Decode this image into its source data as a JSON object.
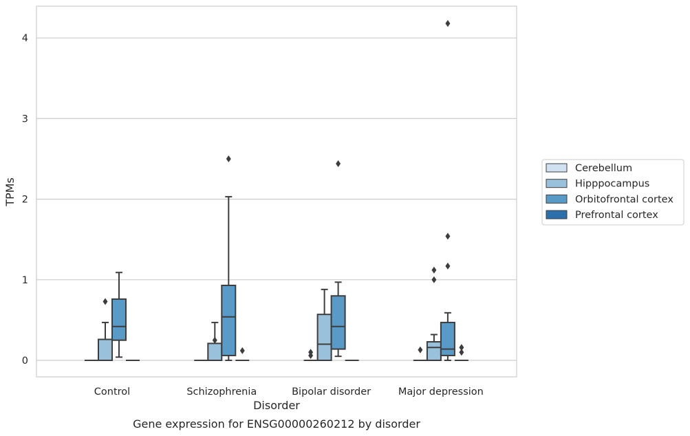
{
  "caption": "Gene expression for ENSG00000260212 by disorder",
  "chart_data": {
    "type": "box",
    "xlabel": "Disorder",
    "ylabel": "TPMs",
    "ylim": [
      -0.2,
      4.4
    ],
    "yticks": [
      0,
      1,
      2,
      3,
      4
    ],
    "grid": "y",
    "legend_position": "right",
    "categories": [
      "Control",
      "Schizophrenia",
      "Bipolar disorder",
      "Major depression"
    ],
    "series": [
      {
        "name": "Cerebellum",
        "color": "#d0e2f2",
        "boxes": [
          {
            "q1": 0,
            "median": 0,
            "q3": 0,
            "whisker_low": 0,
            "whisker_high": 0,
            "outliers": []
          },
          {
            "q1": 0,
            "median": 0,
            "q3": 0,
            "whisker_low": 0,
            "whisker_high": 0,
            "outliers": []
          },
          {
            "q1": 0,
            "median": 0,
            "q3": 0,
            "whisker_low": 0,
            "whisker_high": 0,
            "outliers": [
              0.06,
              0.1
            ]
          },
          {
            "q1": 0,
            "median": 0,
            "q3": 0,
            "whisker_low": 0,
            "whisker_high": 0,
            "outliers": [
              0.13
            ]
          }
        ]
      },
      {
        "name": "Hipppocampus",
        "color": "#9ac1dc",
        "boxes": [
          {
            "q1": 0,
            "median": 0,
            "q3": 0.26,
            "whisker_low": 0,
            "whisker_high": 0.47,
            "outliers": [
              0.73
            ]
          },
          {
            "q1": 0,
            "median": 0,
            "q3": 0.21,
            "whisker_low": 0,
            "whisker_high": 0.47,
            "outliers": [
              0.25
            ]
          },
          {
            "q1": 0,
            "median": 0.2,
            "q3": 0.57,
            "whisker_low": 0,
            "whisker_high": 0.88,
            "outliers": []
          },
          {
            "q1": 0,
            "median": 0.16,
            "q3": 0.23,
            "whisker_low": 0,
            "whisker_high": 0.32,
            "outliers": [
              1.0,
              1.12
            ]
          }
        ]
      },
      {
        "name": "Orbitofrontal cortex",
        "color": "#5a9ac6",
        "boxes": [
          {
            "q1": 0.25,
            "median": 0.42,
            "q3": 0.76,
            "whisker_low": 0.04,
            "whisker_high": 1.09,
            "outliers": []
          },
          {
            "q1": 0.06,
            "median": 0.54,
            "q3": 0.93,
            "whisker_low": 0,
            "whisker_high": 2.03,
            "outliers": [
              2.5
            ]
          },
          {
            "q1": 0.14,
            "median": 0.42,
            "q3": 0.8,
            "whisker_low": 0.05,
            "whisker_high": 0.97,
            "outliers": [
              2.44
            ]
          },
          {
            "q1": 0.06,
            "median": 0.14,
            "q3": 0.47,
            "whisker_low": 0,
            "whisker_high": 0.59,
            "outliers": [
              1.17,
              1.54,
              4.18
            ]
          }
        ]
      },
      {
        "name": "Prefrontal cortex",
        "color": "#2b6fac",
        "boxes": [
          {
            "q1": 0,
            "median": 0,
            "q3": 0,
            "whisker_low": 0,
            "whisker_high": 0,
            "outliers": []
          },
          {
            "q1": 0,
            "median": 0,
            "q3": 0,
            "whisker_low": 0,
            "whisker_high": 0,
            "outliers": [
              0.12
            ]
          },
          {
            "q1": 0,
            "median": 0,
            "q3": 0,
            "whisker_low": 0,
            "whisker_high": 0,
            "outliers": []
          },
          {
            "q1": 0,
            "median": 0,
            "q3": 0,
            "whisker_low": 0,
            "whisker_high": 0,
            "outliers": [
              0.1,
              0.16
            ]
          }
        ]
      }
    ]
  }
}
